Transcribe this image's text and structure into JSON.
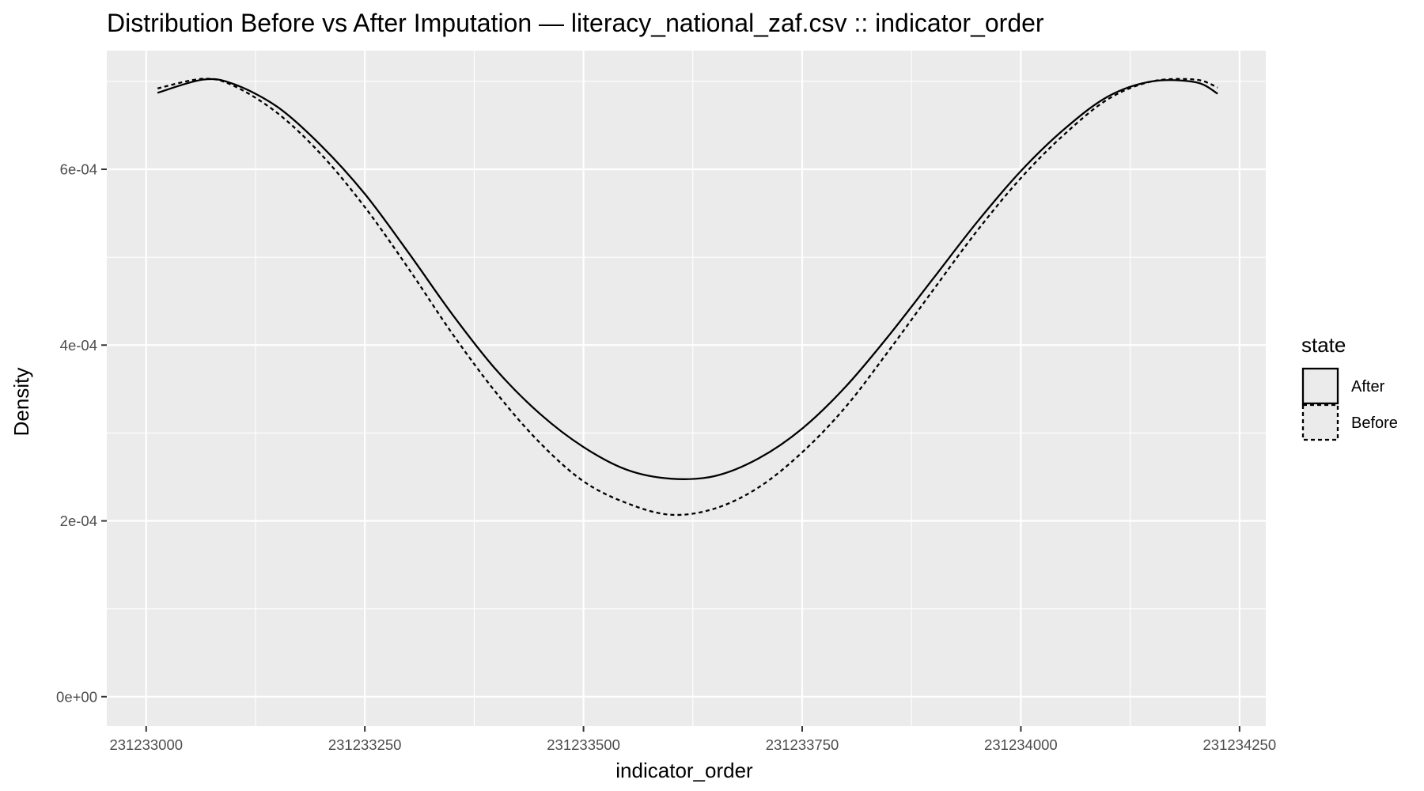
{
  "chart_data": {
    "type": "line",
    "title": "Distribution Before vs After Imputation — literacy_national_zaf.csv :: indicator_order",
    "xlabel": "indicator_order",
    "ylabel": "Density",
    "xlim": [
      231232955,
      231234280
    ],
    "ylim": [
      -3.35e-05,
      0.000735
    ],
    "x_ticks": [
      231233000,
      231233250,
      231233500,
      231233750,
      231234000,
      231234250
    ],
    "x_tick_labels": [
      "231233000",
      "231233250",
      "231233500",
      "231233750",
      "231234000",
      "231234250"
    ],
    "y_ticks": [
      0,
      0.0002,
      0.0004,
      0.0006
    ],
    "y_tick_labels": [
      "0e+00",
      "2e-04",
      "4e-04",
      "6e-04"
    ],
    "grid": true,
    "legend": {
      "title": "state",
      "position": "right"
    },
    "series": [
      {
        "name": "After",
        "linestyle": "solid",
        "x": [
          231233013,
          231233065,
          231233100,
          231233150,
          231233200,
          231233250,
          231233300,
          231233350,
          231233400,
          231233450,
          231233500,
          231233550,
          231233600,
          231233650,
          231233700,
          231233750,
          231233800,
          231233850,
          231233900,
          231233950,
          231234000,
          231234050,
          231234100,
          231234150,
          231234200,
          231234225
        ],
        "values": [
          0.000687,
          0.000702,
          0.000697,
          0.000671,
          0.000627,
          0.000572,
          0.000505,
          0.000435,
          0.000372,
          0.000322,
          0.000284,
          0.000258,
          0.000248,
          0.000251,
          0.000271,
          0.000305,
          0.000353,
          0.000412,
          0.000476,
          0.00054,
          0.000598,
          0.000646,
          0.000683,
          0.0007,
          0.000699,
          0.000686
        ]
      },
      {
        "name": "Before",
        "linestyle": "dashed",
        "x": [
          231233013,
          231233065,
          231233100,
          231233150,
          231233200,
          231233250,
          231233300,
          231233350,
          231233400,
          231233450,
          231233500,
          231233550,
          231233600,
          231233650,
          231233700,
          231233750,
          231233800,
          231233850,
          231233900,
          231233950,
          231234000,
          231234050,
          231234100,
          231234150,
          231234200,
          231234225
        ],
        "values": [
          0.000692,
          0.000703,
          0.000695,
          0.000664,
          0.000617,
          0.000557,
          0.000487,
          0.000413,
          0.000346,
          0.000289,
          0.000245,
          0.00022,
          0.000207,
          0.000214,
          0.000238,
          0.000278,
          0.00033,
          0.000395,
          0.000463,
          0.00053,
          0.00059,
          0.00064,
          0.00068,
          0.0007,
          0.000702,
          0.000693
        ]
      }
    ]
  }
}
